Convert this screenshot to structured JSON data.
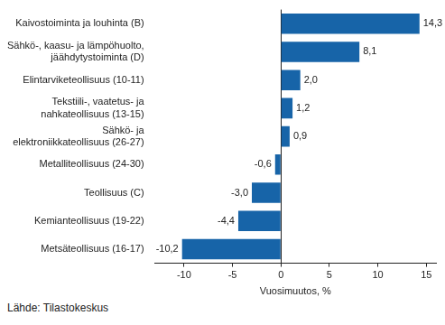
{
  "chart_data": {
    "type": "bar",
    "orientation": "horizontal",
    "categories": [
      "Kaivostoiminta ja louhinta (B)",
      [
        "Sähkö-, kaasu- ja lämpöhuolto,",
        "jäähdytystoiminta (D)"
      ],
      "Elintarviketeollisuus (10-11)",
      [
        "Tekstiili-, vaatetus- ja",
        "nahkateollisuus (13-15)"
      ],
      [
        "Sähkö- ja",
        "elektroniikkateollisuus (26-27)"
      ],
      "Metalliteollisuus (24-30)",
      "Teollisuus (C)",
      "Kemianteollisuus (19-22)",
      "Metsäteollisuus (16-17)"
    ],
    "values": [
      14.3,
      8.1,
      2.0,
      1.2,
      0.9,
      -0.6,
      -3.0,
      -4.4,
      -10.2
    ],
    "value_labels": [
      "14,3",
      "8,1",
      "2,0",
      "1,2",
      "0,9",
      "-0,6",
      "-3,0",
      "-4,4",
      "-10,2"
    ],
    "data_labels": true,
    "color": "#1764a8",
    "xlim": [
      -13,
      16
    ],
    "xticks": [
      -10,
      -5,
      0,
      5,
      10,
      15
    ],
    "xlabel": "Vuosimuutos, %",
    "grid": false,
    "source": "Lähde: Tilastokeskus"
  }
}
